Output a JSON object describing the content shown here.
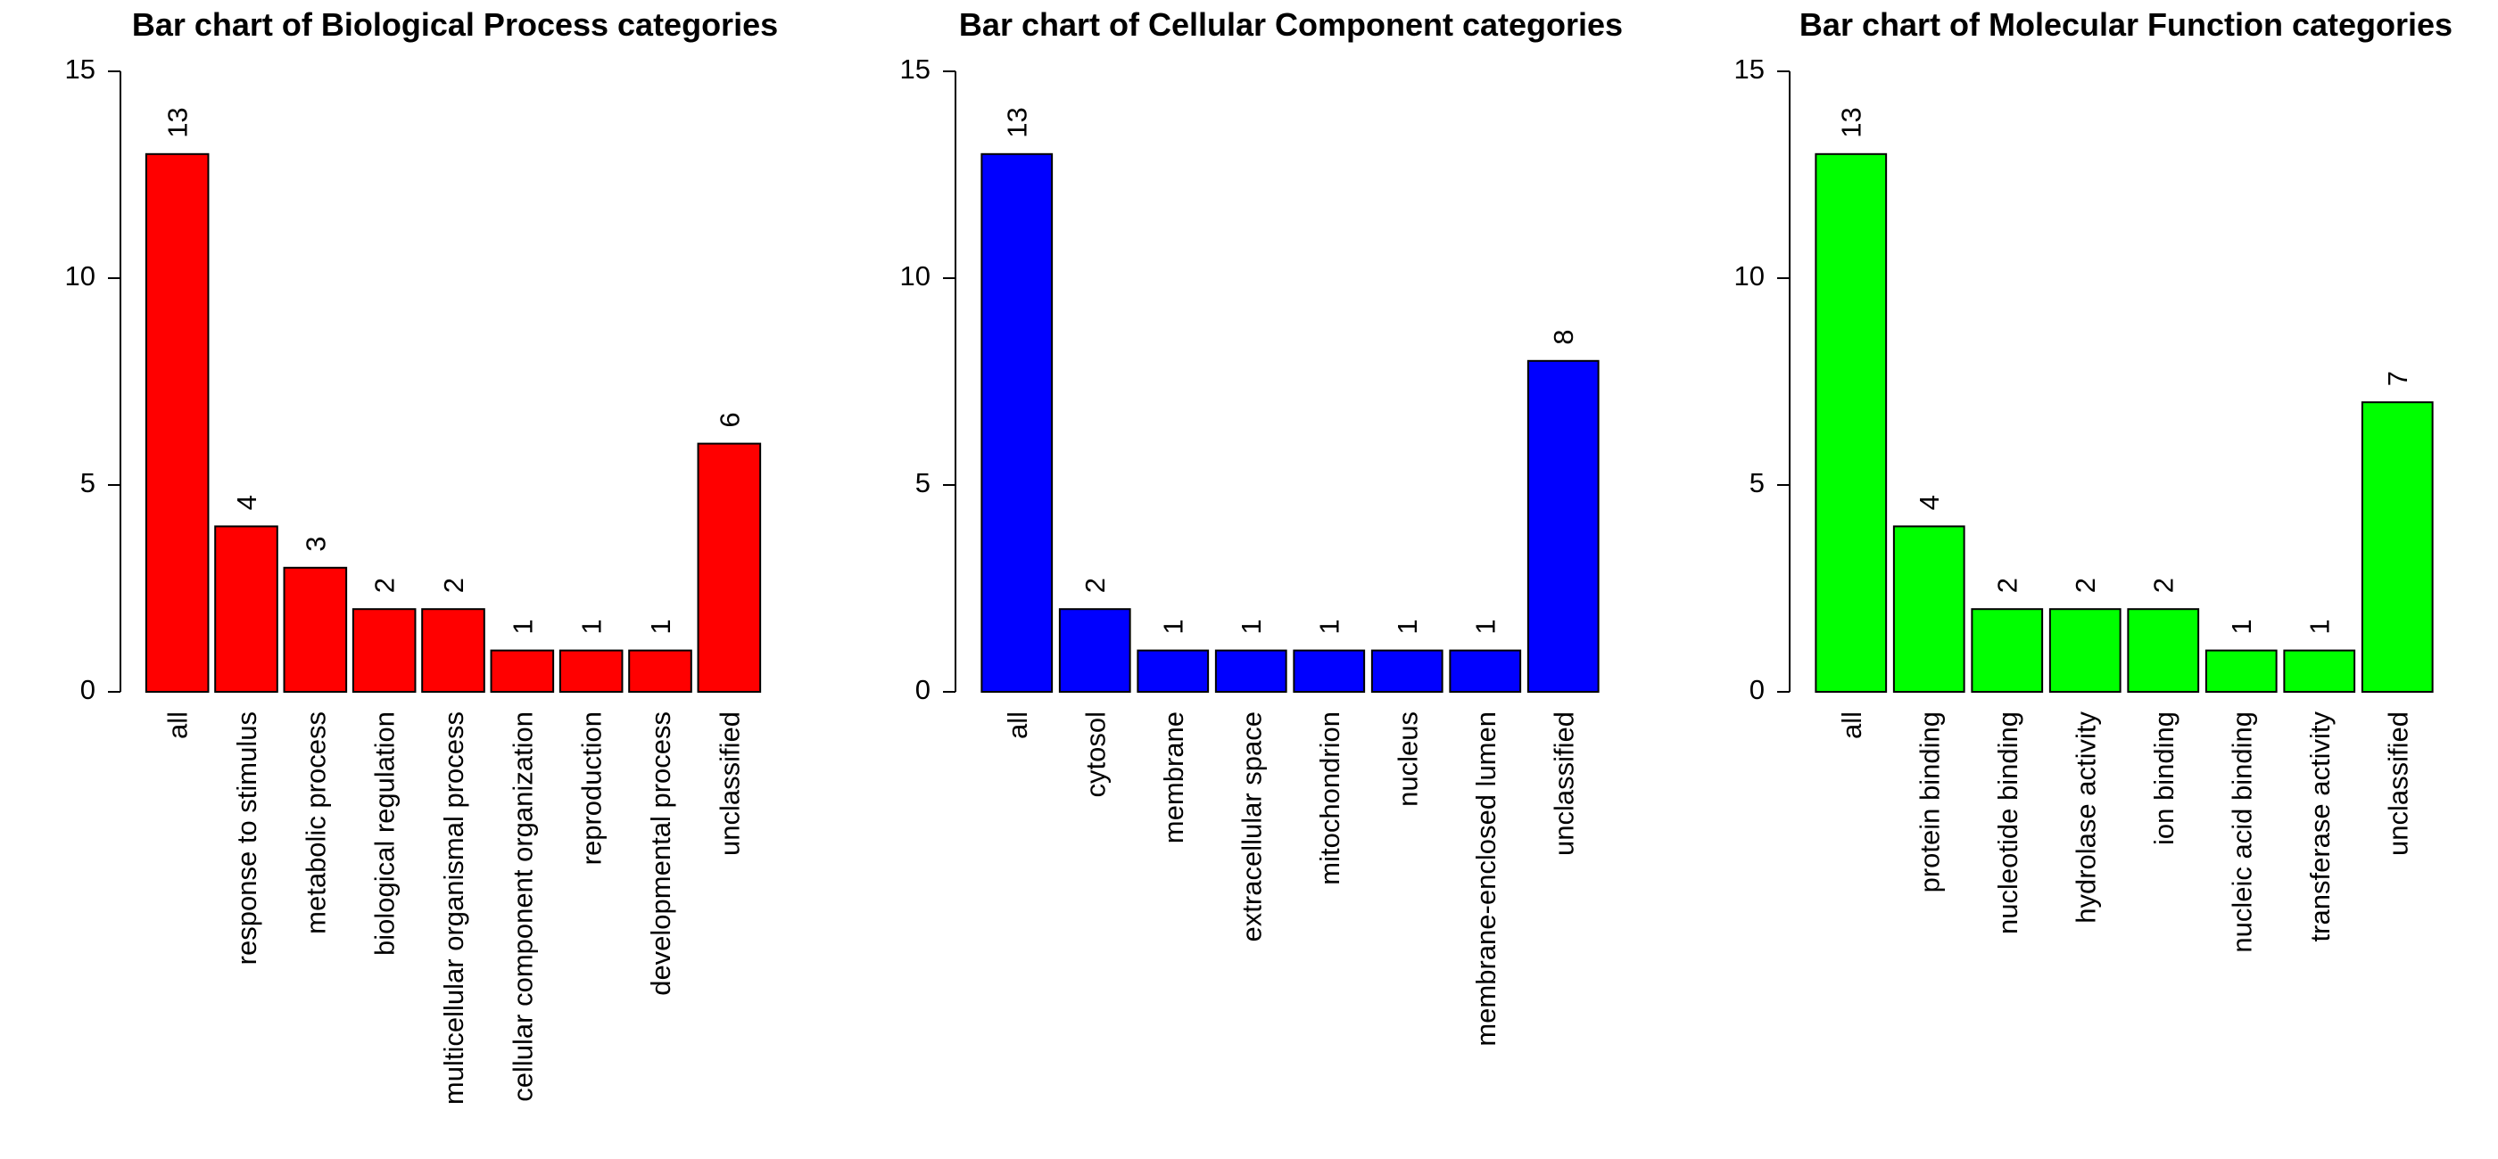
{
  "chart_data": [
    {
      "type": "bar",
      "title": "Bar chart of Biological Process categories",
      "categories": [
        "all",
        "response to stimulus",
        "metabolic process",
        "biological regulation",
        "multicellular organismal process",
        "cellular component organization",
        "reproduction",
        "developmental process",
        "unclassified"
      ],
      "values": [
        13,
        4,
        3,
        2,
        2,
        1,
        1,
        1,
        6
      ],
      "value_labels": [
        "13",
        "4",
        "3",
        "2",
        "2",
        "1",
        "1",
        "1",
        "6"
      ],
      "color": "#ff0000",
      "xlabel": "",
      "ylabel": "",
      "ylim": [
        0,
        15
      ],
      "yticks": [
        "0",
        "5",
        "10",
        "15"
      ],
      "grid": false
    },
    {
      "type": "bar",
      "title": "Bar chart of Cellular Component categories",
      "categories": [
        "all",
        "cytosol",
        "membrane",
        "extracellular space",
        "mitochondrion",
        "nucleus",
        "membrane-enclosed lumen",
        "unclassified"
      ],
      "values": [
        13,
        2,
        1,
        1,
        1,
        1,
        1,
        8
      ],
      "value_labels": [
        "13",
        "2",
        "1",
        "1",
        "1",
        "1",
        "1",
        "8"
      ],
      "color": "#0000ff",
      "xlabel": "",
      "ylabel": "",
      "ylim": [
        0,
        15
      ],
      "yticks": [
        "0",
        "5",
        "10",
        "15"
      ],
      "grid": false
    },
    {
      "type": "bar",
      "title": "Bar chart of Molecular Function categories",
      "categories": [
        "all",
        "protein binding",
        "nucleotide binding",
        "hydrolase activity",
        "ion binding",
        "nucleic acid binding",
        "transferase activity",
        "unclassified"
      ],
      "values": [
        13,
        4,
        2,
        2,
        2,
        1,
        1,
        7
      ],
      "value_labels": [
        "13",
        "4",
        "2",
        "2",
        "2",
        "1",
        "1",
        "7"
      ],
      "color": "#00ff00",
      "xlabel": "",
      "ylabel": "",
      "ylim": [
        0,
        15
      ],
      "yticks": [
        "0",
        "5",
        "10",
        "15"
      ],
      "grid": false
    }
  ]
}
